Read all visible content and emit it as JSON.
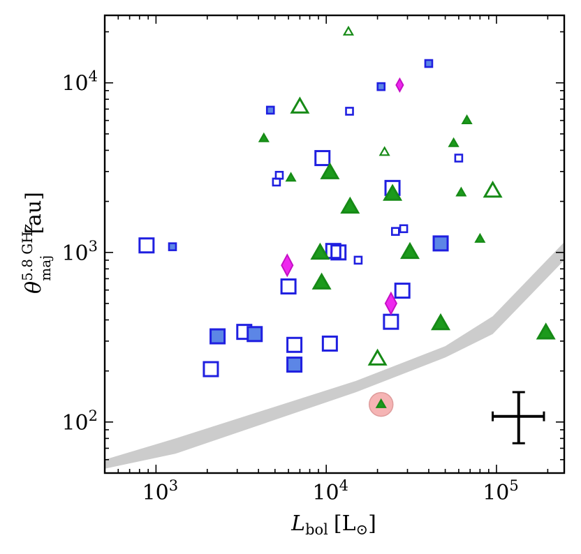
{
  "chart_data": {
    "type": "scatter",
    "xscale": "log",
    "yscale": "log",
    "xlim": [
      500,
      250000
    ],
    "ylim": [
      50,
      25000
    ],
    "xlabel": {
      "main": "L",
      "sub": "bol",
      "unit": "[L",
      "unit_sub": "⊙",
      "unit_end": "]"
    },
    "ylabel": {
      "main": "θ",
      "sup": "5.8 GHz",
      "sub": "maj",
      "unit": "[au]"
    },
    "xticks": [
      {
        "value": 1000,
        "base": "10",
        "exp": "3"
      },
      {
        "value": 10000,
        "base": "10",
        "exp": "4"
      },
      {
        "value": 100000,
        "base": "10",
        "exp": "5"
      }
    ],
    "yticks": [
      {
        "value": 100,
        "base": "10",
        "exp": "2"
      },
      {
        "value": 1000,
        "base": "10",
        "exp": "3"
      },
      {
        "value": 10000,
        "base": "10",
        "exp": "4"
      }
    ],
    "sensitivity_band": {
      "x": [
        500,
        1300,
        15000,
        50000,
        95000,
        250000
      ],
      "lower": [
        53,
        65,
        150,
        240,
        330,
        900
      ],
      "upper": [
        60,
        80,
        175,
        280,
        420,
        1150
      ]
    },
    "error_bar": {
      "x": 135000,
      "y": 108,
      "xlo": 95000,
      "xhi": 190000,
      "ylo": 75,
      "yhi": 150
    },
    "highlight": {
      "x": 21000,
      "y": 127
    },
    "colors": {
      "square": "#1f1fe0",
      "square_fill": "#5c86e6",
      "triangle": "#168a16",
      "triangle_fill": "#1c9a1c",
      "diamond": "#c510c5",
      "diamond_fill": "#ee28ee",
      "band": "#cccccc",
      "highlight": "#f4a7a7"
    },
    "series": [
      {
        "name": "squares",
        "marker": "square",
        "points": [
          {
            "x": 880,
            "y": 1100,
            "size": "large",
            "filled": false
          },
          {
            "x": 1250,
            "y": 1080,
            "size": "small",
            "filled": true
          },
          {
            "x": 2100,
            "y": 205,
            "size": "large",
            "filled": false
          },
          {
            "x": 2300,
            "y": 320,
            "size": "large",
            "filled": true
          },
          {
            "x": 3300,
            "y": 340,
            "size": "large",
            "filled": false
          },
          {
            "x": 3800,
            "y": 330,
            "size": "large",
            "filled": true
          },
          {
            "x": 4700,
            "y": 6900,
            "size": "small",
            "filled": true
          },
          {
            "x": 5100,
            "y": 2600,
            "size": "small",
            "filled": false
          },
          {
            "x": 5300,
            "y": 2850,
            "size": "small",
            "filled": false
          },
          {
            "x": 6000,
            "y": 630,
            "size": "large",
            "filled": false
          },
          {
            "x": 6500,
            "y": 285,
            "size": "large",
            "filled": false
          },
          {
            "x": 6500,
            "y": 218,
            "size": "large",
            "filled": true
          },
          {
            "x": 9500,
            "y": 3600,
            "size": "large",
            "filled": false
          },
          {
            "x": 10500,
            "y": 290,
            "size": "large",
            "filled": false
          },
          {
            "x": 11000,
            "y": 1020,
            "size": "large",
            "filled": false
          },
          {
            "x": 11800,
            "y": 1000,
            "size": "large",
            "filled": false
          },
          {
            "x": 13700,
            "y": 6800,
            "size": "small",
            "filled": false
          },
          {
            "x": 15400,
            "y": 900,
            "size": "small",
            "filled": false
          },
          {
            "x": 21000,
            "y": 9500,
            "size": "small",
            "filled": true
          },
          {
            "x": 24000,
            "y": 390,
            "size": "large",
            "filled": false
          },
          {
            "x": 24500,
            "y": 2400,
            "size": "large",
            "filled": false
          },
          {
            "x": 25500,
            "y": 1330,
            "size": "small",
            "filled": false
          },
          {
            "x": 28500,
            "y": 1380,
            "size": "small",
            "filled": false
          },
          {
            "x": 28000,
            "y": 595,
            "size": "large",
            "filled": false
          },
          {
            "x": 40000,
            "y": 13000,
            "size": "small",
            "filled": true
          },
          {
            "x": 47000,
            "y": 1130,
            "size": "large",
            "filled": true
          },
          {
            "x": 60000,
            "y": 3600,
            "size": "small",
            "filled": false
          }
        ]
      },
      {
        "name": "triangles",
        "marker": "triangle",
        "points": [
          {
            "x": 4300,
            "y": 4700,
            "size": "small",
            "filled": true
          },
          {
            "x": 6200,
            "y": 2750,
            "size": "small",
            "filled": true
          },
          {
            "x": 7000,
            "y": 7200,
            "size": "large",
            "filled": false
          },
          {
            "x": 9200,
            "y": 990,
            "size": "large",
            "filled": true
          },
          {
            "x": 9400,
            "y": 660,
            "size": "large",
            "filled": true
          },
          {
            "x": 10500,
            "y": 2950,
            "size": "large",
            "filled": true
          },
          {
            "x": 13500,
            "y": 20000,
            "size": "small",
            "filled": false
          },
          {
            "x": 13800,
            "y": 1850,
            "size": "large",
            "filled": true
          },
          {
            "x": 20000,
            "y": 235,
            "size": "large",
            "filled": false
          },
          {
            "x": 21000,
            "y": 127,
            "size": "small",
            "filled": true
          },
          {
            "x": 22000,
            "y": 3900,
            "size": "small",
            "filled": false
          },
          {
            "x": 24500,
            "y": 2200,
            "size": "large",
            "filled": true
          },
          {
            "x": 31000,
            "y": 1000,
            "size": "large",
            "filled": true
          },
          {
            "x": 47000,
            "y": 380,
            "size": "large",
            "filled": true
          },
          {
            "x": 56000,
            "y": 4400,
            "size": "small",
            "filled": true
          },
          {
            "x": 62000,
            "y": 2250,
            "size": "small",
            "filled": true
          },
          {
            "x": 67000,
            "y": 6000,
            "size": "small",
            "filled": true
          },
          {
            "x": 80000,
            "y": 1200,
            "size": "small",
            "filled": true
          },
          {
            "x": 95000,
            "y": 2300,
            "size": "large",
            "filled": false
          },
          {
            "x": 195000,
            "y": 335,
            "size": "large",
            "filled": true
          }
        ]
      },
      {
        "name": "diamonds",
        "marker": "diamond",
        "points": [
          {
            "x": 5900,
            "y": 840,
            "size": "large",
            "filled": true
          },
          {
            "x": 24000,
            "y": 500,
            "size": "large",
            "filled": true
          },
          {
            "x": 27000,
            "y": 9700,
            "size": "small",
            "filled": true
          }
        ]
      }
    ]
  }
}
